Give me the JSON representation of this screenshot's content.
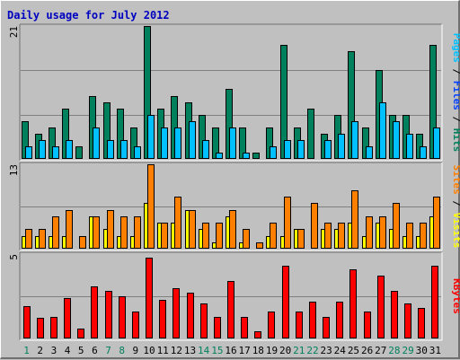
{
  "chart_data": {
    "type": "bar",
    "title": "Daily usage for July 2012",
    "categories": [
      "1",
      "2",
      "3",
      "4",
      "5",
      "6",
      "7",
      "8",
      "9",
      "10",
      "11",
      "12",
      "13",
      "14",
      "15",
      "16",
      "17",
      "18",
      "19",
      "20",
      "21",
      "22",
      "23",
      "24",
      "25",
      "26",
      "27",
      "28",
      "29",
      "30",
      "31"
    ],
    "weekend_days": [
      "1",
      "7",
      "8",
      "14",
      "15",
      "21",
      "22",
      "28",
      "29"
    ],
    "panels": [
      {
        "id": "pages-files-hits",
        "ymax": 21,
        "labels": [
          {
            "text": "Pages",
            "color": "#00c0ff"
          },
          {
            "text": " / ",
            "color": "#000000"
          },
          {
            "text": "Files",
            "color": "#0040ff"
          },
          {
            "text": " / ",
            "color": "#000000"
          },
          {
            "text": "Hits",
            "color": "#00805c"
          }
        ],
        "series": [
          {
            "name": "Hits",
            "color": "#00805c",
            "values": [
              6,
              4,
              5,
              8,
              2,
              10,
              9,
              8,
              5,
              21,
              8,
              10,
              9,
              7,
              5,
              11,
              5,
              1,
              5,
              18,
              5,
              8,
              4,
              7,
              17,
              5,
              14,
              7,
              7,
              4,
              18
            ]
          },
          {
            "name": "Pages",
            "color": "#00c0ff",
            "values": [
              2,
              3,
              2,
              3,
              0,
              5,
              3,
              3,
              2,
              7,
              5,
              5,
              6,
              3,
              1,
              5,
              1,
              0,
              2,
              3,
              3,
              0,
              3,
              4,
              6,
              2,
              9,
              6,
              4,
              2,
              5
            ]
          }
        ]
      },
      {
        "id": "sites-visits",
        "ymax": 13,
        "labels": [
          {
            "text": "Sites",
            "color": "#ff8000"
          },
          {
            "text": " / ",
            "color": "#000000"
          },
          {
            "text": "Visits",
            "color": "#ffff00"
          }
        ],
        "series": [
          {
            "name": "Visits",
            "color": "#ffff00",
            "values": [
              2,
              2,
              2,
              2,
              0,
              5,
              3,
              2,
              2,
              7,
              4,
              4,
              6,
              3,
              1,
              5,
              1,
              0,
              2,
              2,
              3,
              0,
              3,
              3,
              4,
              2,
              4,
              3,
              2,
              2,
              5
            ]
          },
          {
            "name": "Sites",
            "color": "#ff8000",
            "values": [
              3,
              3,
              5,
              6,
              2,
              5,
              6,
              5,
              5,
              13,
              4,
              8,
              6,
              4,
              4,
              6,
              3,
              1,
              4,
              8,
              3,
              7,
              4,
              4,
              9,
              5,
              5,
              7,
              4,
              4,
              8
            ]
          }
        ]
      },
      {
        "id": "kbytes",
        "ymax": 5,
        "labels": [
          {
            "text": "KBytes",
            "color": "#ff0000"
          }
        ],
        "series": [
          {
            "name": "KBytes",
            "color": "#ff0000",
            "values": [
              1.9,
              1.2,
              1.3,
              2.4,
              0.6,
              3.1,
              2.8,
              2.5,
              1.6,
              4.8,
              2.3,
              3.0,
              2.7,
              2.1,
              1.3,
              3.4,
              1.3,
              0.4,
              1.6,
              4.3,
              1.6,
              2.2,
              1.3,
              2.2,
              4.1,
              1.6,
              3.7,
              2.8,
              2.1,
              1.8,
              4.3
            ]
          }
        ]
      }
    ]
  }
}
